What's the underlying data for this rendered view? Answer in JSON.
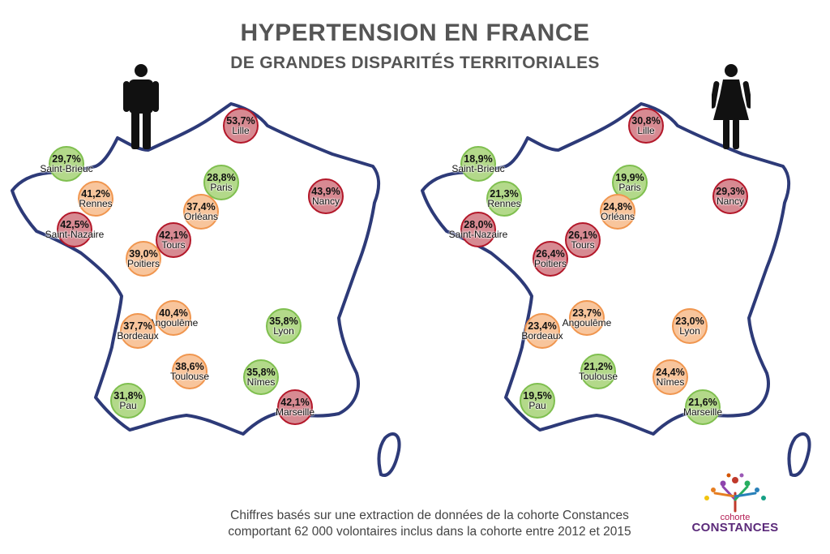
{
  "title": "HYPERTENSION EN FRANCE",
  "subtitle": "DE GRANDES DISPARITÉS TERRITORIALES",
  "colors": {
    "high": "#b3182a",
    "medium": "#f0964f",
    "low": "#7fbf4f",
    "outline": "#2d3a78"
  },
  "maps": {
    "men": {
      "figure_icon": "male-figure-icon",
      "cities": [
        {
          "name": "Lille",
          "value": "53,7%",
          "level": "red"
        },
        {
          "name": "Saint-Brieuc",
          "value": "29,7%",
          "level": "green"
        },
        {
          "name": "Rennes",
          "value": "41,2%",
          "level": "orange"
        },
        {
          "name": "Saint-Nazaire",
          "value": "42,5%",
          "level": "red"
        },
        {
          "name": "Paris",
          "value": "28,8%",
          "level": "green"
        },
        {
          "name": "Nancy",
          "value": "43,9%",
          "level": "red"
        },
        {
          "name": "Orléans",
          "value": "37,4%",
          "level": "orange"
        },
        {
          "name": "Tours",
          "value": "42,1%",
          "level": "red"
        },
        {
          "name": "Poitiers",
          "value": "39,0%",
          "level": "orange"
        },
        {
          "name": "Angoulême",
          "value": "40,4%",
          "level": "orange"
        },
        {
          "name": "Bordeaux",
          "value": "37,7%",
          "level": "orange"
        },
        {
          "name": "Lyon",
          "value": "35,8%",
          "level": "green"
        },
        {
          "name": "Toulouse",
          "value": "38,6%",
          "level": "orange"
        },
        {
          "name": "Nîmes",
          "value": "35,8%",
          "level": "green"
        },
        {
          "name": "Pau",
          "value": "31,8%",
          "level": "green"
        },
        {
          "name": "Marseille",
          "value": "42,1%",
          "level": "red"
        }
      ]
    },
    "women": {
      "figure_icon": "female-figure-icon",
      "cities": [
        {
          "name": "Lille",
          "value": "30,8%",
          "level": "red"
        },
        {
          "name": "Saint-Brieuc",
          "value": "18,9%",
          "level": "green"
        },
        {
          "name": "Rennes",
          "value": "21,3%",
          "level": "green"
        },
        {
          "name": "Saint-Nazaire",
          "value": "28,0%",
          "level": "red"
        },
        {
          "name": "Paris",
          "value": "19,9%",
          "level": "green"
        },
        {
          "name": "Nancy",
          "value": "29,3%",
          "level": "red"
        },
        {
          "name": "Orléans",
          "value": "24,8%",
          "level": "orange"
        },
        {
          "name": "Tours",
          "value": "26,1%",
          "level": "red"
        },
        {
          "name": "Poitiers",
          "value": "26,4%",
          "level": "red"
        },
        {
          "name": "Angoulême",
          "value": "23,7%",
          "level": "orange"
        },
        {
          "name": "Bordeaux",
          "value": "23,4%",
          "level": "orange"
        },
        {
          "name": "Lyon",
          "value": "23,0%",
          "level": "orange"
        },
        {
          "name": "Toulouse",
          "value": "21,2%",
          "level": "green"
        },
        {
          "name": "Nîmes",
          "value": "24,4%",
          "level": "orange"
        },
        {
          "name": "Pau",
          "value": "19,5%",
          "level": "green"
        },
        {
          "name": "Marseille",
          "value": "21,6%",
          "level": "green"
        }
      ]
    }
  },
  "footer": {
    "line1": "Chiffres basés sur une extraction de données de la cohorte Constances",
    "line2": "comportant 62 000 volontaires inclus dans la cohorte entre 2012 et 2015"
  },
  "logo": {
    "word1": "cohorte",
    "word2": "CONSTANCES"
  }
}
